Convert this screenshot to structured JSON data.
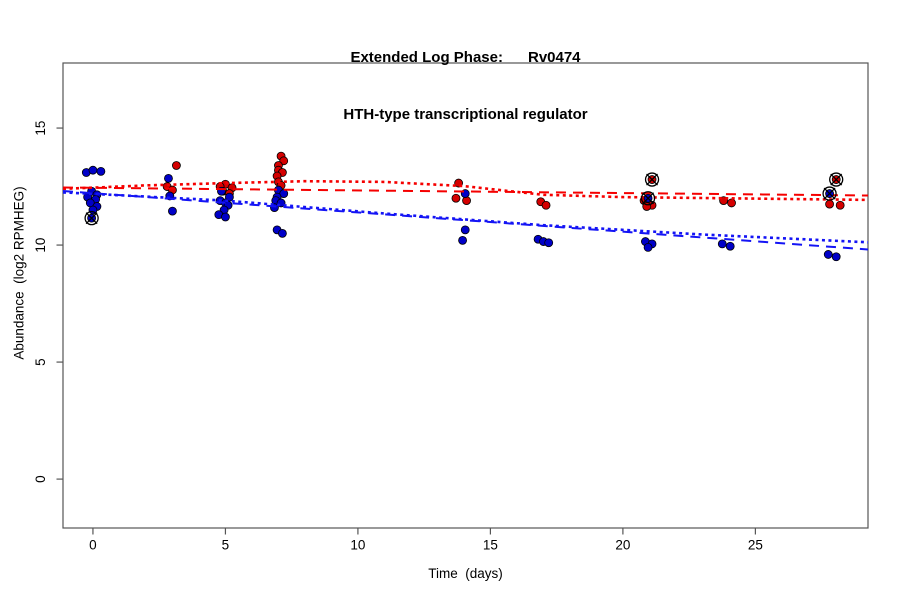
{
  "chart_data": {
    "type": "scatter",
    "title_line1": "Extended Log Phase:      Rv0474",
    "title_line2": "HTH-type transcriptional regulator",
    "xlabel": "Time  (days)",
    "ylabel": "Abundance  (log2 RPMHEG)",
    "xticks": [
      0,
      5,
      10,
      15,
      20,
      25
    ],
    "yticks": [
      0,
      5,
      10,
      15
    ],
    "xlim": [
      -1.13,
      29.25
    ],
    "ylim": [
      -2.09,
      17.78
    ],
    "legend_position": "none",
    "grid": "off",
    "axis_color": "#555555",
    "series": [
      {
        "name": "condition-red",
        "point_color": "#D40000",
        "line_color": "#F50000",
        "points": [
          [
            3.15,
            13.4
          ],
          [
            2.8,
            12.5
          ],
          [
            3.0,
            12.35
          ],
          [
            5.0,
            12.6
          ],
          [
            4.8,
            12.5
          ],
          [
            5.25,
            12.45
          ],
          [
            4.9,
            12.3
          ],
          [
            5.15,
            12.2
          ],
          [
            7.1,
            13.8
          ],
          [
            7.2,
            13.6
          ],
          [
            7.0,
            13.4
          ],
          [
            7.0,
            13.2
          ],
          [
            7.15,
            13.1
          ],
          [
            6.95,
            12.95
          ],
          [
            7.0,
            12.7
          ],
          [
            7.1,
            12.55
          ],
          [
            13.8,
            12.65
          ],
          [
            13.7,
            12.0
          ],
          [
            14.1,
            11.9
          ],
          [
            16.9,
            11.85
          ],
          [
            17.1,
            11.7
          ],
          [
            20.8,
            11.9
          ],
          [
            21.1,
            11.7
          ],
          [
            20.9,
            11.65
          ],
          [
            23.8,
            11.9
          ],
          [
            24.1,
            11.8
          ],
          [
            27.8,
            11.75
          ],
          [
            28.2,
            11.7
          ]
        ],
        "flagged_points": [
          [
            21.1,
            12.8
          ],
          [
            28.05,
            12.8
          ]
        ],
        "trend_dashed": [
          [
            -1.13,
            12.46
          ],
          [
            29.25,
            12.12
          ]
        ],
        "trend_dotted": [
          [
            -1.13,
            12.4
          ],
          [
            2,
            12.55
          ],
          [
            5,
            12.65
          ],
          [
            8,
            12.73
          ],
          [
            11,
            12.7
          ],
          [
            14,
            12.52
          ],
          [
            17,
            12.15
          ],
          [
            20,
            12.05
          ],
          [
            24,
            12.0
          ],
          [
            29.25,
            11.93
          ]
        ]
      },
      {
        "name": "condition-blue",
        "point_color": "#0000C8",
        "line_color": "#1414F5",
        "points": [
          [
            -0.25,
            13.1
          ],
          [
            0.0,
            13.2
          ],
          [
            0.3,
            13.15
          ],
          [
            -0.05,
            12.3
          ],
          [
            0.15,
            12.15
          ],
          [
            -0.2,
            12.05
          ],
          [
            0.1,
            11.95
          ],
          [
            -0.1,
            11.8
          ],
          [
            0.15,
            11.65
          ],
          [
            0.0,
            11.5
          ],
          [
            2.85,
            12.85
          ],
          [
            2.9,
            12.1
          ],
          [
            3.0,
            11.45
          ],
          [
            4.85,
            12.3
          ],
          [
            5.15,
            12.05
          ],
          [
            4.8,
            11.9
          ],
          [
            5.0,
            11.8
          ],
          [
            5.1,
            11.7
          ],
          [
            4.95,
            11.5
          ],
          [
            4.75,
            11.3
          ],
          [
            5.0,
            11.2
          ],
          [
            7.0,
            12.35
          ],
          [
            7.2,
            12.2
          ],
          [
            6.95,
            12.05
          ],
          [
            6.9,
            11.9
          ],
          [
            7.1,
            11.8
          ],
          [
            6.85,
            11.6
          ],
          [
            6.95,
            10.65
          ],
          [
            7.15,
            10.5
          ],
          [
            14.05,
            12.2
          ],
          [
            14.05,
            10.65
          ],
          [
            13.95,
            10.2
          ],
          [
            16.8,
            10.25
          ],
          [
            17.0,
            10.15
          ],
          [
            17.2,
            10.1
          ],
          [
            20.85,
            10.15
          ],
          [
            21.1,
            10.05
          ],
          [
            20.95,
            9.9
          ],
          [
            23.75,
            10.05
          ],
          [
            24.05,
            9.95
          ],
          [
            27.75,
            9.6
          ],
          [
            28.05,
            9.5
          ]
        ],
        "flagged_points": [
          [
            -0.05,
            11.15
          ],
          [
            20.95,
            12.0
          ],
          [
            27.8,
            12.2
          ]
        ],
        "trend_dashed": [
          [
            -1.13,
            12.31
          ],
          [
            29.25,
            9.81
          ]
        ],
        "trend_dotted": [
          [
            -1.13,
            12.25
          ],
          [
            5,
            11.9
          ],
          [
            11,
            11.35
          ],
          [
            17,
            10.85
          ],
          [
            23,
            10.45
          ],
          [
            29.25,
            10.12
          ]
        ]
      }
    ]
  }
}
